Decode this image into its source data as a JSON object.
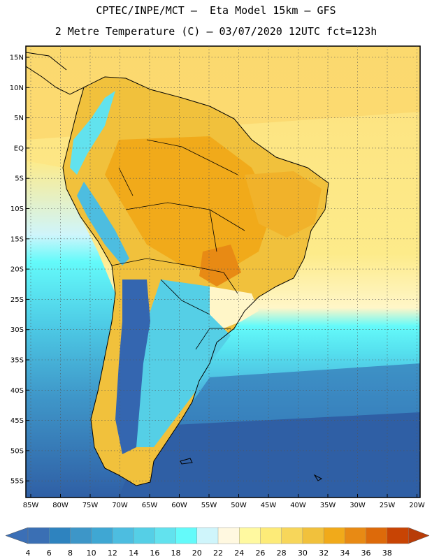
{
  "title_line1": "CPTEC/INPE/MCT –  Eta Model 15km – GFS",
  "title_line2": "2 Metre Temperature (C) – 03/07/2020 12UTC fct=123h",
  "lat_labels": [
    "15N",
    "10N",
    "5N",
    "EQ",
    "5S",
    "10S",
    "15S",
    "20S",
    "25S",
    "30S",
    "35S",
    "40S",
    "45S",
    "50S",
    "55S"
  ],
  "lon_labels": [
    "85W",
    "80W",
    "75W",
    "70W",
    "65W",
    "60W",
    "55W",
    "50W",
    "45W",
    "40W",
    "35W",
    "30W",
    "25W",
    "20W"
  ],
  "colorbar": {
    "ticks": [
      "4",
      "6",
      "8",
      "10",
      "12",
      "14",
      "16",
      "18",
      "20",
      "22",
      "24",
      "26",
      "28",
      "30",
      "32",
      "34",
      "36",
      "38"
    ],
    "colors": [
      "#3a6fb4",
      "#2e83bf",
      "#3d96c8",
      "#3fa7d3",
      "#4dbde0",
      "#55cfe6",
      "#62e2ee",
      "#64fafa",
      "#cff5fb",
      "#fff8e0",
      "#fff9a0",
      "#fdeb78",
      "#f7d65a",
      "#f1c13c",
      "#f1aa1a",
      "#e88a14",
      "#dd6a0a",
      "#c84404"
    ],
    "left_cap": "#3b6fb6",
    "right_cap": "#b83c08"
  },
  "colors": {
    "ocean_cold": "#2f5fa5",
    "ocean_cool": "#4aa6d6",
    "ocean_mild": "#4dd8ea",
    "ocean_warm": "#f7d65a",
    "land_hot": "#f1aa1a",
    "andes": "#3466b0"
  }
}
